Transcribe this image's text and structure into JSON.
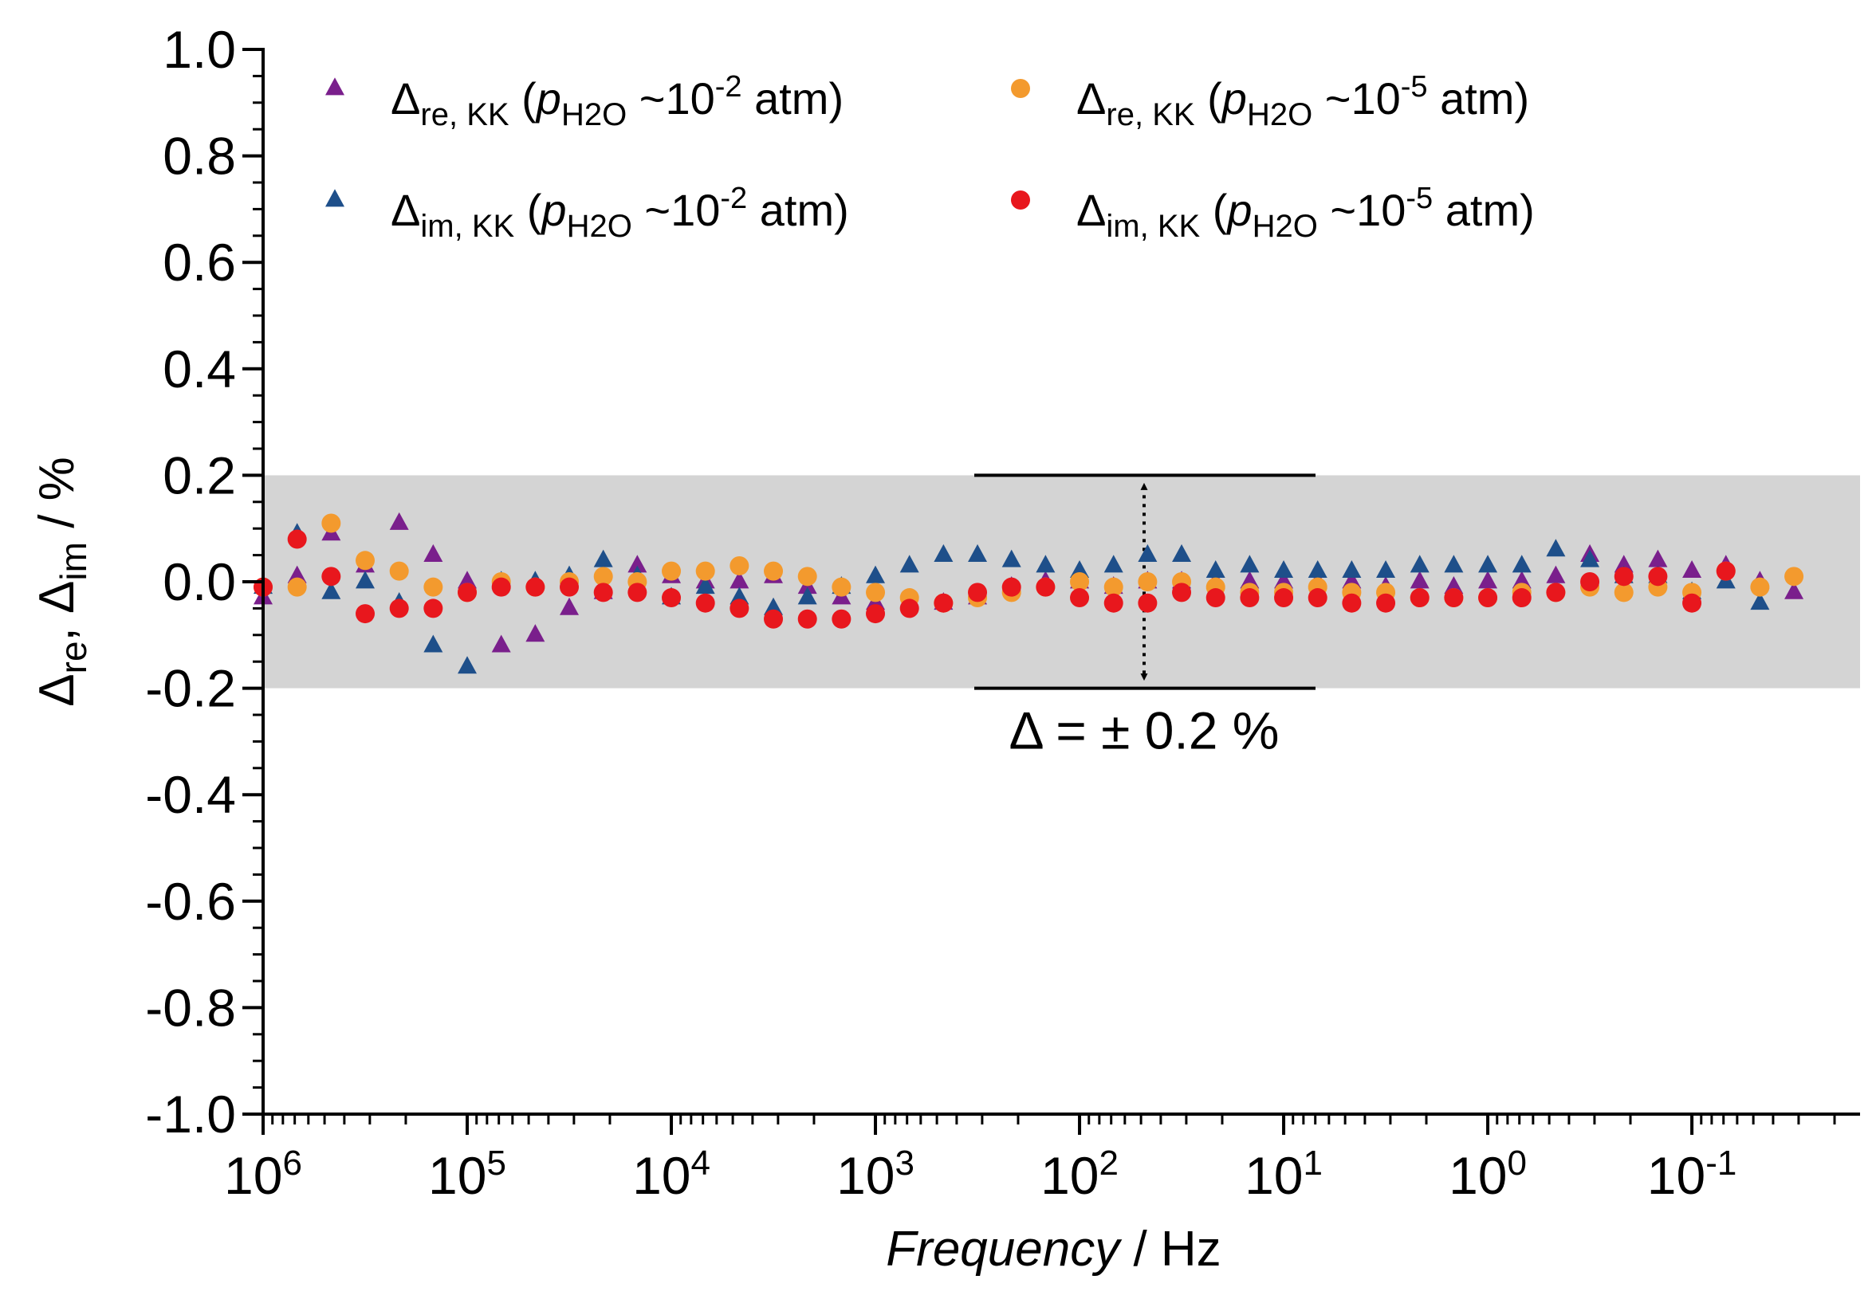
{
  "chart_data": {
    "type": "scatter",
    "x_scale": "log",
    "x_reversed": true,
    "xlim": [
      1000000,
      0.015
    ],
    "ylim": [
      -1.0,
      1.0
    ],
    "y_ticks": [
      1.0,
      0.8,
      0.6,
      0.4,
      0.2,
      0.0,
      -0.2,
      -0.4,
      -0.6,
      -0.8,
      -1.0
    ],
    "y_tick_labels": [
      "1.0",
      "0.8",
      "0.6",
      "0.4",
      "0.2",
      "0.0",
      "-0.2",
      "-0.4",
      "-0.6",
      "-0.8",
      "-1.0"
    ],
    "x_ticks": [
      {
        "base": "10",
        "exp": "6"
      },
      {
        "base": "10",
        "exp": "5"
      },
      {
        "base": "10",
        "exp": "4"
      },
      {
        "base": "10",
        "exp": "3"
      },
      {
        "base": "10",
        "exp": "2"
      },
      {
        "base": "10",
        "exp": "1"
      },
      {
        "base": "10",
        "exp": "0"
      },
      {
        "base": "10",
        "exp": "-1"
      }
    ],
    "xlabel": {
      "italic": "Frequency",
      "rest": " / Hz"
    },
    "ylabel": {
      "d1": "Δ",
      "s1": "re",
      "mid": ", Δ",
      "s2": "im",
      "tail": " / %"
    },
    "band": {
      "lower": -0.2,
      "upper": 0.2,
      "color": "#d4d4d4"
    },
    "annotation": {
      "text": "Δ = ± 0.2 %"
    },
    "legend_position": "top",
    "log_x": [
      6.0,
      5.8333,
      5.6667,
      5.5,
      5.3333,
      5.1667,
      5.0,
      4.8333,
      4.6667,
      4.5,
      4.3333,
      4.1667,
      4.0,
      3.8333,
      3.6667,
      3.5,
      3.3333,
      3.1667,
      3.0,
      2.8333,
      2.6667,
      2.5,
      2.3333,
      2.1667,
      2.0,
      1.8333,
      1.6667,
      1.5,
      1.3333,
      1.1667,
      1.0,
      0.8333,
      0.6667,
      0.5,
      0.3333,
      0.1667,
      0.0,
      -0.1667,
      -0.3333,
      -0.5,
      -0.6667,
      -0.8333,
      -1.0,
      -1.1667,
      -1.3333,
      -1.5,
      -1.6667
    ],
    "series": [
      {
        "name_parts": [
          "Δ",
          "re, KK",
          " (",
          "p",
          "H2O",
          " ~10",
          "-2",
          " atm)"
        ],
        "marker": "triangle",
        "color": "#7a1f8c",
        "values": [
          -0.03,
          0.01,
          0.09,
          0.03,
          0.11,
          0.05,
          0.0,
          -0.12,
          -0.1,
          -0.05,
          -0.02,
          0.03,
          0.01,
          0.0,
          0.0,
          0.01,
          -0.01,
          -0.03,
          -0.04,
          -0.04,
          -0.04,
          -0.03,
          -0.01,
          0.0,
          0.0,
          -0.01,
          0.0,
          0.0,
          0.0,
          0.0,
          0.0,
          0.0,
          0.0,
          -0.01,
          0.0,
          -0.01,
          0.0,
          0.0,
          0.01,
          0.05,
          0.03,
          0.04,
          0.02,
          0.03,
          0.0,
          -0.02
        ]
      },
      {
        "name_parts": [
          "Δ",
          "im, KK",
          " (",
          "p",
          "H2O",
          " ~10",
          "-2",
          " atm)"
        ],
        "marker": "triangle",
        "color": "#1e4f8a",
        "values": [
          -0.01,
          0.09,
          -0.02,
          0.0,
          -0.04,
          -0.12,
          -0.16,
          0.0,
          0.0,
          0.01,
          0.04,
          0.01,
          -0.03,
          -0.01,
          -0.03,
          -0.05,
          -0.03,
          -0.01,
          0.01,
          0.03,
          0.05,
          0.05,
          0.04,
          0.03,
          0.02,
          0.03,
          0.05,
          0.05,
          0.02,
          0.03,
          0.02,
          0.02,
          0.02,
          0.02,
          0.03,
          0.03,
          0.03,
          0.03,
          0.06,
          0.04,
          0.01,
          0.01,
          -0.02,
          0.0,
          -0.04
        ]
      },
      {
        "name_parts": [
          "Δ",
          "re, KK",
          " (",
          "p",
          "H2O",
          " ~10",
          "-5",
          " atm)"
        ],
        "marker": "circle",
        "color": "#f39a2e",
        "values": [
          -0.01,
          -0.01,
          0.11,
          0.04,
          0.02,
          -0.01,
          -0.02,
          0.0,
          -0.01,
          0.0,
          0.01,
          0.0,
          0.02,
          0.02,
          0.03,
          0.02,
          0.01,
          -0.01,
          -0.02,
          -0.03,
          -0.04,
          -0.03,
          -0.02,
          -0.01,
          0.0,
          -0.01,
          0.0,
          0.0,
          -0.01,
          -0.02,
          -0.02,
          -0.01,
          -0.02,
          -0.02,
          -0.03,
          -0.03,
          -0.03,
          -0.02,
          -0.02,
          -0.01,
          -0.02,
          -0.01,
          -0.02,
          0.02,
          -0.01,
          0.01
        ]
      },
      {
        "name_parts": [
          "Δ",
          "im, KK",
          " (",
          "p",
          "H2O",
          " ~10",
          "-5",
          " atm)"
        ],
        "marker": "circle",
        "color": "#e8171d",
        "values": [
          -0.01,
          0.08,
          0.01,
          -0.06,
          -0.05,
          -0.05,
          -0.02,
          -0.01,
          -0.01,
          -0.01,
          -0.02,
          -0.02,
          -0.03,
          -0.04,
          -0.05,
          -0.07,
          -0.07,
          -0.07,
          -0.06,
          -0.05,
          -0.04,
          -0.02,
          -0.01,
          -0.01,
          -0.03,
          -0.04,
          -0.04,
          -0.02,
          -0.03,
          -0.03,
          -0.03,
          -0.03,
          -0.04,
          -0.04,
          -0.03,
          -0.03,
          -0.03,
          -0.03,
          -0.02,
          0.0,
          0.01,
          0.01,
          -0.04,
          0.02
        ]
      }
    ]
  }
}
